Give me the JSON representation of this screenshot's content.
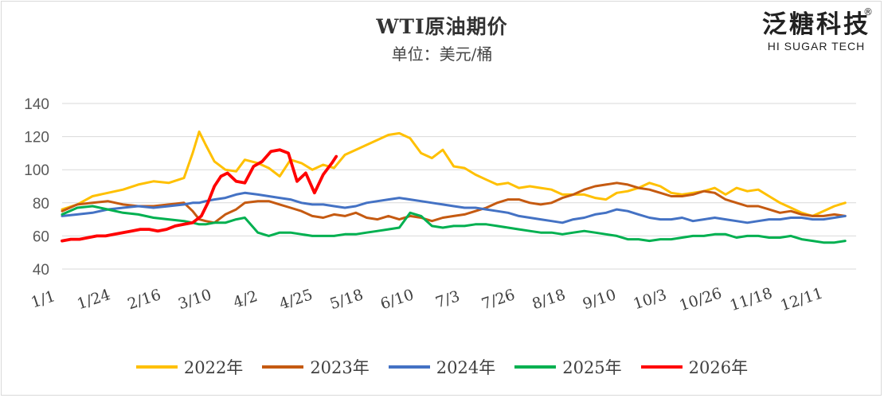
{
  "chart_data": {
    "type": "line",
    "title": "WTI原油期价",
    "subtitle": "单位：美元/桶",
    "ylim": [
      40,
      140
    ],
    "yticks": [
      40,
      60,
      80,
      100,
      120,
      140
    ],
    "x_tick_labels": [
      "1/1",
      "1/24",
      "2/16",
      "3/10",
      "4/2",
      "4/25",
      "5/18",
      "6/10",
      "7/3",
      "7/26",
      "8/18",
      "9/10",
      "10/3",
      "10/26",
      "11/18",
      "12/11"
    ],
    "x_domain_days": [
      0,
      365
    ],
    "grid": "horizontal",
    "legend": "bottom",
    "series": [
      {
        "name": "2022年",
        "color": "#FFC000",
        "x": [
          0,
          7,
          14,
          21,
          28,
          35,
          42,
          49,
          56,
          60,
          63,
          66,
          70,
          75,
          80,
          84,
          90,
          95,
          100,
          105,
          110,
          115,
          120,
          125,
          130,
          135,
          140,
          145,
          150,
          155,
          160,
          165,
          170,
          175,
          180,
          185,
          190,
          195,
          200,
          205,
          210,
          215,
          220,
          225,
          230,
          235,
          240,
          245,
          250,
          255,
          260,
          265,
          270,
          275,
          280,
          285,
          290,
          295,
          300,
          305,
          310,
          315,
          320,
          325,
          330,
          335,
          340,
          345,
          350,
          355,
          360
        ],
        "values": [
          76,
          79,
          84,
          86,
          88,
          91,
          93,
          92,
          95,
          110,
          123,
          115,
          105,
          100,
          99,
          106,
          104,
          101,
          96,
          106,
          104,
          100,
          103,
          101,
          109,
          112,
          115,
          118,
          121,
          122,
          119,
          110,
          107,
          112,
          102,
          101,
          97,
          94,
          91,
          92,
          89,
          90,
          89,
          88,
          85,
          85,
          85,
          83,
          82,
          86,
          87,
          89,
          92,
          90,
          86,
          85,
          86,
          87,
          89,
          85,
          89,
          87,
          88,
          84,
          80,
          77,
          74,
          72,
          75,
          78,
          80
        ]
      },
      {
        "name": "2023年",
        "color": "#C55A11",
        "x": [
          0,
          7,
          14,
          21,
          28,
          35,
          42,
          49,
          56,
          60,
          63,
          66,
          70,
          75,
          80,
          84,
          90,
          95,
          100,
          105,
          110,
          115,
          120,
          125,
          130,
          135,
          140,
          145,
          150,
          155,
          160,
          165,
          170,
          175,
          180,
          185,
          190,
          195,
          200,
          205,
          210,
          215,
          220,
          225,
          230,
          235,
          240,
          245,
          250,
          255,
          260,
          265,
          270,
          275,
          280,
          285,
          290,
          295,
          300,
          305,
          310,
          315,
          320,
          325,
          330,
          335,
          340,
          345,
          350,
          355,
          360
        ],
        "values": [
          75,
          79,
          80,
          81,
          79,
          78,
          78,
          79,
          80,
          75,
          70,
          69,
          68,
          73,
          76,
          80,
          81,
          81,
          79,
          77,
          75,
          72,
          71,
          73,
          72,
          74,
          71,
          70,
          72,
          70,
          72,
          71,
          69,
          71,
          72,
          73,
          75,
          77,
          80,
          82,
          82,
          80,
          79,
          80,
          83,
          85,
          88,
          90,
          91,
          92,
          91,
          89,
          88,
          86,
          84,
          84,
          85,
          87,
          86,
          82,
          80,
          78,
          78,
          76,
          74,
          75,
          73,
          72,
          72,
          73,
          72
        ]
      },
      {
        "name": "2024年",
        "color": "#4472C4",
        "x": [
          0,
          7,
          14,
          21,
          28,
          35,
          42,
          49,
          56,
          60,
          63,
          66,
          70,
          75,
          80,
          84,
          90,
          95,
          100,
          105,
          110,
          115,
          120,
          125,
          130,
          135,
          140,
          145,
          150,
          155,
          160,
          165,
          170,
          175,
          180,
          185,
          190,
          195,
          200,
          205,
          210,
          215,
          220,
          225,
          230,
          235,
          240,
          245,
          250,
          255,
          260,
          265,
          270,
          275,
          280,
          285,
          290,
          295,
          300,
          305,
          310,
          315,
          320,
          325,
          330,
          335,
          340,
          345,
          350,
          355,
          360
        ],
        "values": [
          72,
          73,
          74,
          76,
          77,
          78,
          77,
          78,
          79,
          80,
          80,
          81,
          82,
          83,
          85,
          86,
          85,
          84,
          83,
          82,
          80,
          79,
          79,
          78,
          77,
          78,
          80,
          81,
          82,
          83,
          82,
          81,
          80,
          79,
          78,
          77,
          77,
          76,
          75,
          74,
          72,
          71,
          70,
          69,
          68,
          70,
          71,
          73,
          74,
          76,
          75,
          73,
          71,
          70,
          70,
          71,
          69,
          70,
          71,
          70,
          69,
          68,
          69,
          70,
          70,
          71,
          71,
          70,
          70,
          71,
          72
        ]
      },
      {
        "name": "2025年",
        "color": "#00B050",
        "x": [
          0,
          7,
          14,
          21,
          28,
          35,
          42,
          49,
          56,
          60,
          63,
          66,
          70,
          75,
          80,
          84,
          90,
          95,
          100,
          105,
          110,
          115,
          120,
          125,
          130,
          135,
          140,
          145,
          150,
          155,
          160,
          165,
          170,
          175,
          180,
          185,
          190,
          195,
          200,
          205,
          210,
          215,
          220,
          225,
          230,
          235,
          240,
          245,
          250,
          255,
          260,
          265,
          270,
          275,
          280,
          285,
          290,
          295,
          300,
          305,
          310,
          315,
          320,
          325,
          330,
          335,
          340,
          345,
          350,
          355,
          360
        ],
        "values": [
          73,
          77,
          78,
          76,
          74,
          73,
          71,
          70,
          69,
          68,
          67,
          67,
          68,
          68,
          70,
          71,
          62,
          60,
          62,
          62,
          61,
          60,
          60,
          60,
          61,
          61,
          62,
          63,
          64,
          65,
          74,
          72,
          66,
          65,
          66,
          66,
          67,
          67,
          66,
          65,
          64,
          63,
          62,
          62,
          61,
          62,
          63,
          62,
          61,
          60,
          58,
          58,
          57,
          58,
          58,
          59,
          60,
          60,
          61,
          61,
          59,
          60,
          60,
          59,
          59,
          60,
          58,
          57,
          56,
          56,
          57
        ]
      },
      {
        "name": "2026年",
        "color": "#FF0000",
        "x": [
          0,
          4,
          8,
          12,
          16,
          20,
          24,
          28,
          32,
          36,
          40,
          44,
          48,
          52,
          56,
          60,
          64,
          67,
          70,
          73,
          76,
          80,
          84,
          88,
          92,
          96,
          100,
          104,
          108,
          112,
          116,
          120,
          124,
          126
        ],
        "values": [
          57,
          58,
          58,
          59,
          60,
          60,
          61,
          62,
          63,
          64,
          64,
          63,
          64,
          66,
          67,
          68,
          72,
          80,
          90,
          96,
          98,
          93,
          92,
          102,
          105,
          111,
          112,
          110,
          93,
          98,
          86,
          97,
          104,
          108
        ]
      }
    ]
  },
  "logo": {
    "name_cn": "泛糖科技",
    "name_en": "HI SUGAR TECH",
    "registered_mark": "®"
  }
}
